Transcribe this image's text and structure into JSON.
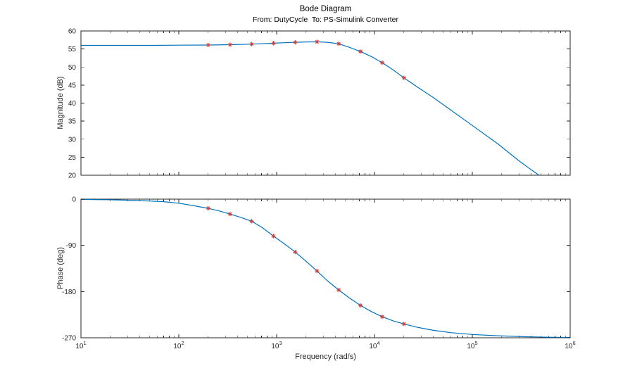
{
  "chart_data": {
    "type": "line",
    "title": "Bode Diagram",
    "subtitle": "From: DutyCycle  To: PS-Simulink Converter",
    "xlabel": "Frequency (rad/s)",
    "x_scale": "log",
    "xlim": [
      10,
      1000000
    ],
    "x_tick_exponents": [
      1,
      2,
      3,
      4,
      5,
      6
    ],
    "grid": "off",
    "line_color": "#0072BD",
    "marker_color": "#C84040",
    "axis_color": "#262626",
    "subplots": [
      {
        "name": "magnitude",
        "ylabel": "Magnitude (dB)",
        "ylim": [
          20,
          60
        ],
        "yticks": [
          20,
          25,
          30,
          35,
          40,
          45,
          50,
          55,
          60
        ],
        "curve": {
          "freq": [
            10,
            50,
            100,
            200,
            334,
            556,
            928,
            1200,
            1548,
            2000,
            2583,
            3300,
            4308,
            5500,
            7187,
            9300,
            11990,
            15500,
            20000,
            28000,
            40000,
            60000,
            100000,
            180000,
            300000,
            400000,
            480000
          ],
          "value": [
            56,
            56,
            56.05,
            56.1,
            56.2,
            56.35,
            56.6,
            56.75,
            56.85,
            56.95,
            57,
            56.85,
            56.45,
            55.5,
            54.3,
            52.9,
            51.2,
            49.2,
            47,
            44.3,
            41.5,
            38.1,
            33.8,
            28.8,
            24,
            21.5,
            20
          ]
        },
        "markers": {
          "freq": [
            200,
            334,
            556,
            928,
            1548,
            2583,
            4308,
            7187,
            11990,
            20000
          ],
          "value": [
            56.1,
            56.2,
            56.35,
            56.6,
            56.85,
            57,
            56.45,
            54.3,
            51.2,
            47
          ]
        }
      },
      {
        "name": "phase",
        "ylabel": "Phase (deg)",
        "ylim": [
          -270,
          0
        ],
        "yticks": [
          -270,
          -180,
          -90,
          0
        ],
        "curve": {
          "freq": [
            10,
            20,
            40,
            70,
            100,
            140,
            200,
            260,
            334,
            430,
            556,
            720,
            928,
            1200,
            1548,
            2000,
            2583,
            3300,
            4308,
            5500,
            7187,
            9300,
            11990,
            15500,
            20000,
            28000,
            40000,
            60000,
            100000,
            180000,
            350000,
            700000,
            1000000
          ],
          "value": [
            -0.5,
            -1.2,
            -2.8,
            -5,
            -8,
            -12.5,
            -18,
            -23,
            -29,
            -35.5,
            -43,
            -56,
            -72,
            -87,
            -103,
            -121,
            -140,
            -159,
            -177,
            -192,
            -207,
            -219,
            -229,
            -237,
            -243,
            -250,
            -255.5,
            -260,
            -263.5,
            -266,
            -268,
            -269,
            -269.3
          ]
        },
        "markers": {
          "freq": [
            200,
            334,
            556,
            928,
            1548,
            2583,
            4308,
            7187,
            11990,
            20000
          ],
          "value": [
            -18,
            -29,
            -43,
            -72,
            -103,
            -140,
            -177,
            -207,
            -229,
            -243
          ]
        }
      }
    ]
  }
}
